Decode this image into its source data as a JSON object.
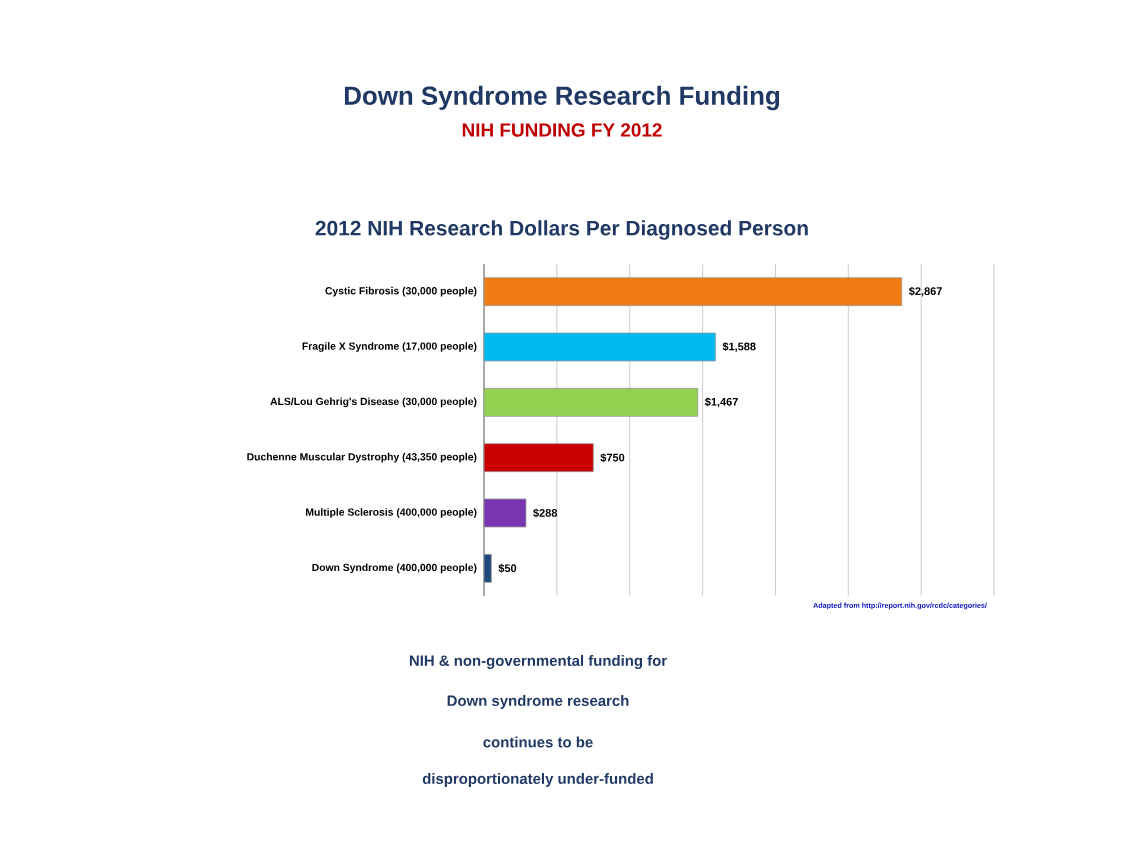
{
  "chart_data": {
    "type": "bar",
    "orientation": "horizontal",
    "title": "Down Syndrome Research Funding",
    "subtitle": "NIH FUNDING FY 2012",
    "annotations": [
      "2012 NIH Research Dollars Per Diagnosed Person",
      "Adapted from http://report.nih.gov/rcdc/categories/",
      "NIH & non-governmental funding for",
      "Down syndrome research",
      "continues to be",
      "disproportionately under-funded"
    ],
    "categories": [
      "Cystic Fibrosis (30,000 people)",
      "Fragile X Syndrome (17,000 people)",
      "ALS/Lou Gehrig's Disease (30,000 people)",
      "Duchenne Muscular Dystrophy (43,350 people)",
      "Multiple Sclerosis (400,000 people)",
      "Down Syndrome (400,000 people)"
    ],
    "values": [
      2867,
      1588,
      1467,
      750,
      288,
      50
    ],
    "value_labels": [
      "$2,867",
      "$1,588",
      "$1,467",
      "$750",
      "$288",
      "$50"
    ],
    "colors": [
      "#f07a14",
      "#00b8f0",
      "#92d050",
      "#c80000",
      "#7a35b0",
      "#1f497d"
    ],
    "xlim": [
      0,
      3500
    ],
    "xticks": [
      {
        "value": 0,
        "label": null
      },
      {
        "value": 500,
        "label": null
      },
      {
        "value": 1000,
        "label": null
      },
      {
        "value": 1500,
        "label": null
      },
      {
        "value": 2000,
        "label": null
      },
      {
        "value": 2500,
        "label": null
      },
      {
        "value": 3000,
        "label": null
      },
      {
        "value": 3500,
        "label": null
      }
    ],
    "grid": "x",
    "tick_labels": "y"
  }
}
